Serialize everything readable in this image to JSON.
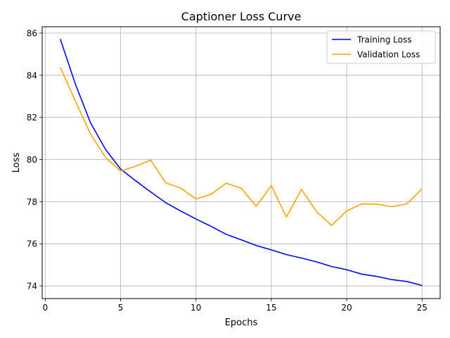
{
  "chart_data": {
    "type": "line",
    "title": "Captioner Loss Curve",
    "xlabel": "Epochs",
    "ylabel": "Loss",
    "xlim": [
      -0.2,
      26.2
    ],
    "ylim": [
      73.4,
      86.3
    ],
    "xticks": [
      0,
      5,
      10,
      15,
      20,
      25
    ],
    "yticks": [
      74,
      76,
      78,
      80,
      82,
      84,
      86
    ],
    "grid": true,
    "legend_position": "top-right",
    "x": [
      1,
      2,
      3,
      4,
      5,
      6,
      7,
      8,
      9,
      10,
      11,
      12,
      13,
      14,
      15,
      16,
      17,
      18,
      19,
      20,
      21,
      22,
      23,
      24,
      25
    ],
    "series": [
      {
        "name": "Training Loss",
        "color": "#0000ff",
        "values": [
          85.72,
          83.58,
          81.75,
          80.48,
          79.55,
          78.99,
          78.46,
          77.95,
          77.55,
          77.18,
          76.83,
          76.45,
          76.19,
          75.92,
          75.71,
          75.49,
          75.32,
          75.14,
          74.92,
          74.77,
          74.56,
          74.45,
          74.3,
          74.21,
          74.02
        ]
      },
      {
        "name": "Validation Loss",
        "color": "#ffa500",
        "values": [
          84.38,
          82.77,
          81.22,
          80.1,
          79.45,
          79.68,
          79.97,
          78.89,
          78.64,
          78.13,
          78.35,
          78.87,
          78.64,
          77.78,
          78.76,
          77.27,
          78.58,
          77.52,
          76.88,
          77.56,
          77.89,
          77.88,
          77.76,
          77.89,
          78.61
        ]
      }
    ]
  }
}
